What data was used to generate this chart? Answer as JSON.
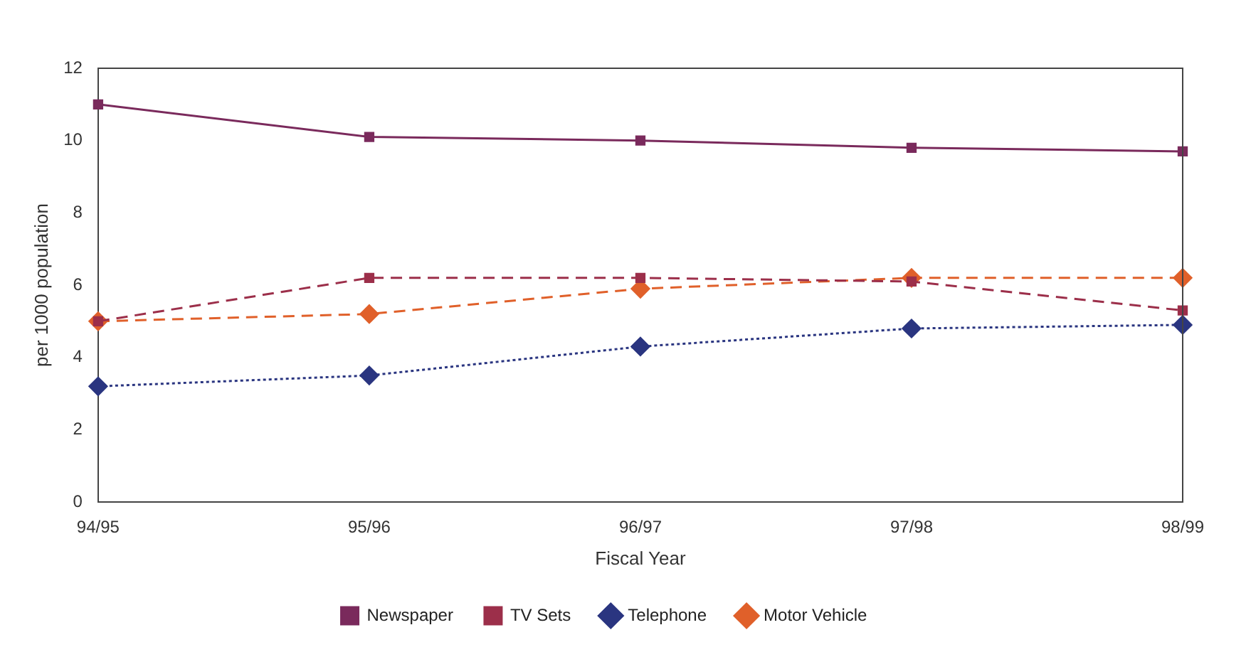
{
  "chart_data": {
    "type": "line",
    "xlabel": "Fiscal Year",
    "ylabel": "per 1000 population",
    "categories": [
      "94/95",
      "95/96",
      "96/97",
      "97/98",
      "98/99"
    ],
    "series": [
      {
        "name": "Newspaper",
        "color": "#7a2a5c",
        "values": [
          11,
          10.1,
          10,
          9.8,
          9.7
        ],
        "marker": "square",
        "line_style": "solid"
      },
      {
        "name": "TV Sets",
        "color": "#9c2f4a",
        "values": [
          5,
          6.2,
          6.2,
          6.1,
          5.3
        ],
        "marker": "square",
        "line_style": "dashed"
      },
      {
        "name": "Telephone",
        "color": "#2a3580",
        "values": [
          3.2,
          3.5,
          4.3,
          4.8,
          4.9
        ],
        "marker": "diamond",
        "line_style": "dotted"
      },
      {
        "name": "Motor Vehicle",
        "color": "#e0602a",
        "values": [
          5,
          5.2,
          5.9,
          6.2,
          6.2
        ],
        "marker": "diamond",
        "line_style": "dashed"
      }
    ],
    "ylim": [
      0,
      12
    ],
    "yticks": [
      0,
      2,
      4,
      6,
      8,
      10,
      12
    ],
    "grid": false,
    "legend": "bottom"
  }
}
